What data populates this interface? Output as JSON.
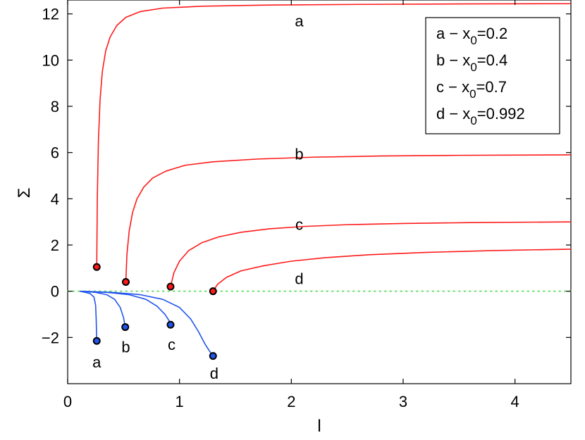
{
  "chart_data": {
    "type": "line",
    "xlabel": "l",
    "ylabel": "Σ",
    "xlim": [
      0,
      4.5
    ],
    "ylim": [
      -4,
      12.6
    ],
    "x_ticks": [
      0,
      1,
      2,
      3,
      4
    ],
    "y_ticks": [
      -2,
      0,
      2,
      4,
      6,
      8,
      10,
      12
    ],
    "x_tick_labels": [
      "0",
      "1",
      "2",
      "3",
      "4"
    ],
    "y_tick_labels": [
      "−2",
      "0",
      "2",
      "4",
      "6",
      "8",
      "10",
      "12"
    ],
    "grid": false,
    "reference_line": {
      "y": 0,
      "color": "#66dd66",
      "style": "dotted"
    },
    "colors": {
      "upper": "#ff1a1a",
      "lower": "#2255ee",
      "marker_edge": "#000000"
    },
    "legend": {
      "placement": "top-right",
      "entries": [
        {
          "key": "a",
          "text": "a − x",
          "sub": "0",
          "value": "=0.2"
        },
        {
          "key": "b",
          "text": "b − x",
          "sub": "0",
          "value": "=0.4"
        },
        {
          "key": "c",
          "text": "c − x",
          "sub": "0",
          "value": "=0.7"
        },
        {
          "key": "d",
          "text": "d − x",
          "sub": "0",
          "value": "=0.992"
        }
      ]
    },
    "series": [
      {
        "name": "a",
        "group": "upper",
        "points": [
          [
            0.26,
            1.05
          ],
          [
            0.265,
            4.0
          ],
          [
            0.275,
            6.5
          ],
          [
            0.29,
            8.3
          ],
          [
            0.31,
            9.5
          ],
          [
            0.34,
            10.4
          ],
          [
            0.38,
            11.0
          ],
          [
            0.44,
            11.5
          ],
          [
            0.52,
            11.85
          ],
          [
            0.65,
            12.1
          ],
          [
            0.85,
            12.25
          ],
          [
            1.2,
            12.33
          ],
          [
            1.8,
            12.38
          ],
          [
            2.6,
            12.41
          ],
          [
            3.5,
            12.43
          ],
          [
            4.5,
            12.44
          ]
        ],
        "label": {
          "text": "a",
          "x": 2.07,
          "y": 11.7
        }
      },
      {
        "name": "b",
        "group": "upper",
        "points": [
          [
            0.52,
            0.4
          ],
          [
            0.53,
            1.6
          ],
          [
            0.55,
            2.6
          ],
          [
            0.58,
            3.4
          ],
          [
            0.62,
            4.0
          ],
          [
            0.68,
            4.5
          ],
          [
            0.76,
            4.9
          ],
          [
            0.88,
            5.2
          ],
          [
            1.05,
            5.45
          ],
          [
            1.3,
            5.6
          ],
          [
            1.7,
            5.72
          ],
          [
            2.2,
            5.8
          ],
          [
            2.8,
            5.85
          ],
          [
            3.5,
            5.88
          ],
          [
            4.5,
            5.9
          ]
        ],
        "label": {
          "text": "b",
          "x": 2.07,
          "y": 5.95
        }
      },
      {
        "name": "c",
        "group": "upper",
        "points": [
          [
            0.92,
            0.2
          ],
          [
            0.95,
            0.8
          ],
          [
            1.0,
            1.3
          ],
          [
            1.08,
            1.75
          ],
          [
            1.2,
            2.1
          ],
          [
            1.35,
            2.35
          ],
          [
            1.55,
            2.55
          ],
          [
            1.8,
            2.7
          ],
          [
            2.1,
            2.8
          ],
          [
            2.5,
            2.88
          ],
          [
            3.0,
            2.93
          ],
          [
            3.6,
            2.97
          ],
          [
            4.5,
            3.0
          ]
        ],
        "label": {
          "text": "c",
          "x": 2.07,
          "y": 2.9
        }
      },
      {
        "name": "d",
        "group": "upper",
        "points": [
          [
            1.3,
            0.0
          ],
          [
            1.34,
            0.3
          ],
          [
            1.42,
            0.6
          ],
          [
            1.55,
            0.88
          ],
          [
            1.75,
            1.1
          ],
          [
            2.0,
            1.3
          ],
          [
            2.3,
            1.45
          ],
          [
            2.7,
            1.58
          ],
          [
            3.2,
            1.68
          ],
          [
            3.8,
            1.76
          ],
          [
            4.5,
            1.82
          ]
        ],
        "label": {
          "text": "d",
          "x": 2.07,
          "y": 0.55
        }
      },
      {
        "name": "a",
        "group": "lower",
        "points": [
          [
            0.11,
            0.0
          ],
          [
            0.16,
            -0.05
          ],
          [
            0.2,
            -0.1
          ],
          [
            0.235,
            -0.25
          ],
          [
            0.25,
            -0.6
          ],
          [
            0.255,
            -1.2
          ],
          [
            0.258,
            -1.8
          ],
          [
            0.26,
            -2.15
          ]
        ],
        "label": {
          "text": "a",
          "x": 0.26,
          "y": -3.05
        }
      },
      {
        "name": "b",
        "group": "lower",
        "points": [
          [
            0.11,
            0.0
          ],
          [
            0.25,
            -0.05
          ],
          [
            0.35,
            -0.15
          ],
          [
            0.42,
            -0.35
          ],
          [
            0.47,
            -0.7
          ],
          [
            0.5,
            -1.15
          ],
          [
            0.515,
            -1.55
          ]
        ],
        "label": {
          "text": "b",
          "x": 0.52,
          "y": -2.4
        }
      },
      {
        "name": "c",
        "group": "lower",
        "points": [
          [
            0.11,
            0.0
          ],
          [
            0.35,
            -0.05
          ],
          [
            0.55,
            -0.15
          ],
          [
            0.7,
            -0.35
          ],
          [
            0.8,
            -0.65
          ],
          [
            0.87,
            -1.0
          ],
          [
            0.91,
            -1.3
          ],
          [
            0.92,
            -1.45
          ]
        ],
        "label": {
          "text": "c",
          "x": 0.93,
          "y": -2.3
        }
      },
      {
        "name": "d",
        "group": "lower",
        "points": [
          [
            0.11,
            0.0
          ],
          [
            0.4,
            -0.05
          ],
          [
            0.65,
            -0.15
          ],
          [
            0.85,
            -0.35
          ],
          [
            1.0,
            -0.7
          ],
          [
            1.1,
            -1.2
          ],
          [
            1.17,
            -1.75
          ],
          [
            1.23,
            -2.3
          ],
          [
            1.27,
            -2.6
          ],
          [
            1.3,
            -2.8
          ]
        ],
        "label": {
          "text": "d",
          "x": 1.31,
          "y": -3.55
        }
      }
    ]
  }
}
